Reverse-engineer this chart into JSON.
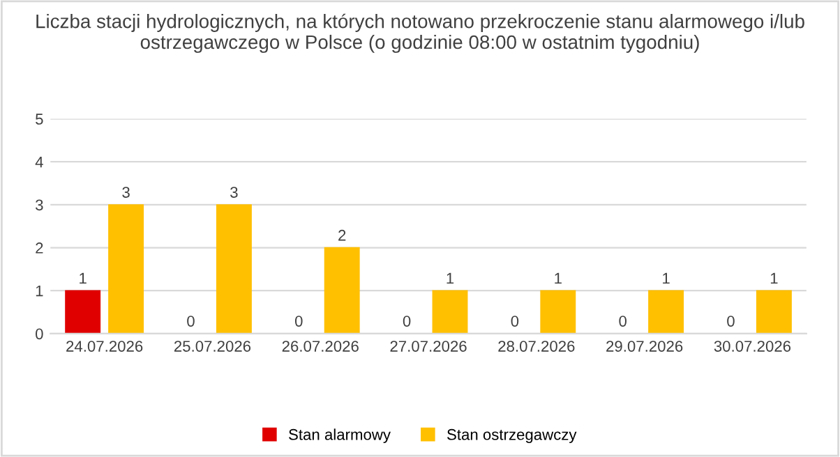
{
  "chart_data": {
    "type": "bar",
    "title": "Liczba stacji hydrologicznych, na których notowano przekroczenie stanu alarmowego i/lub ostrzegawczego w Polsce (o godzinie 08:00 w ostatnim tygodniu)",
    "categories": [
      "24.07.2026",
      "25.07.2026",
      "26.07.2026",
      "27.07.2026",
      "28.07.2026",
      "29.07.2026",
      "30.07.2026"
    ],
    "series": [
      {
        "name": "Stan alarmowy",
        "color": "#e00000",
        "values": [
          1,
          0,
          0,
          0,
          0,
          0,
          0
        ]
      },
      {
        "name": "Stan ostrzegawczy",
        "color": "#ffc000",
        "values": [
          3,
          3,
          2,
          1,
          1,
          1,
          1
        ]
      }
    ],
    "ylim": [
      0,
      5
    ],
    "yticks": [
      0,
      1,
      2,
      3,
      4,
      5
    ],
    "grid": "y",
    "legend": "bottom",
    "data_labels": true
  }
}
